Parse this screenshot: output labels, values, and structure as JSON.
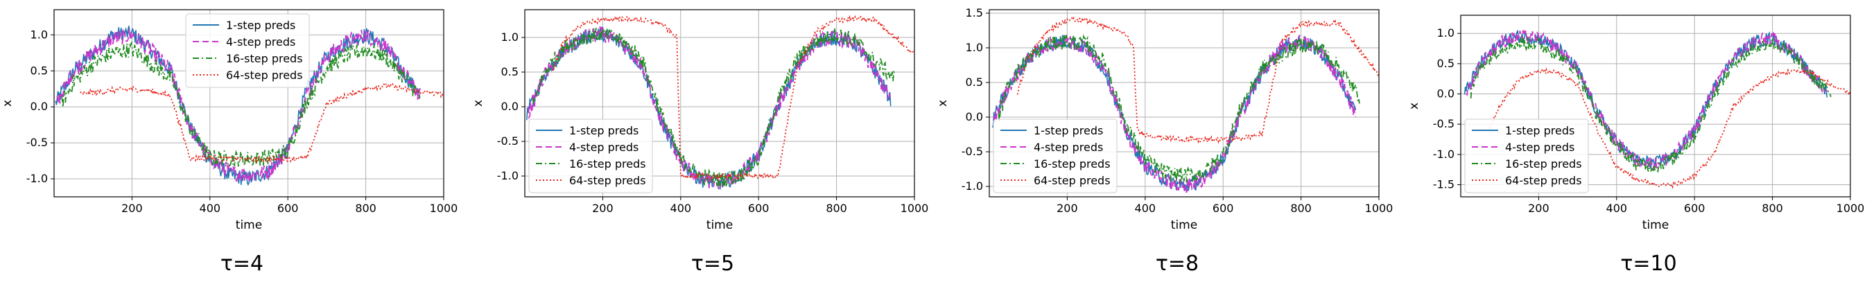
{
  "chart_data": [
    {
      "type": "line",
      "caption": "τ=4",
      "xlabel": "time",
      "ylabel": "x",
      "xlim": [
        0,
        1000
      ],
      "ylim": [
        -1.25,
        1.35
      ],
      "xticks": [
        200,
        400,
        600,
        800,
        1000
      ],
      "yticks": [
        -1.0,
        -0.5,
        0.0,
        0.5,
        1.0
      ],
      "grid": true,
      "legend_position": "top-center",
      "series": [
        {
          "name": "1-step preds",
          "color": "#1f77b4",
          "dash": "solid",
          "x_start": 4,
          "x_end": 940,
          "x": [
            4,
            50,
            100,
            150,
            200,
            250,
            300,
            350,
            400,
            450,
            500,
            550,
            600,
            650,
            700,
            750,
            800,
            850,
            900,
            940
          ],
          "values": [
            0.05,
            0.5,
            0.75,
            1.0,
            1.02,
            0.78,
            0.5,
            -0.3,
            -0.75,
            -0.95,
            -1.0,
            -0.9,
            -0.6,
            0.25,
            0.7,
            0.9,
            1.0,
            0.85,
            0.45,
            0.15
          ]
        },
        {
          "name": "4-step preds",
          "color": "#cc33cc",
          "dash": "dashed",
          "x_start": 7,
          "x_end": 940,
          "x": [
            7,
            50,
            100,
            150,
            200,
            250,
            300,
            350,
            400,
            450,
            500,
            550,
            600,
            650,
            700,
            750,
            800,
            850,
            900,
            940
          ],
          "values": [
            0.05,
            0.5,
            0.75,
            0.95,
            1.0,
            0.78,
            0.5,
            -0.3,
            -0.73,
            -0.9,
            -0.95,
            -0.9,
            -0.6,
            0.2,
            0.7,
            0.9,
            1.0,
            0.85,
            0.45,
            0.15
          ]
        },
        {
          "name": "16-step preds",
          "color": "#228b22",
          "dash": "dashdot",
          "x_start": 19,
          "x_end": 940,
          "x": [
            19,
            50,
            100,
            150,
            200,
            250,
            300,
            350,
            400,
            450,
            500,
            550,
            600,
            650,
            700,
            750,
            800,
            850,
            900,
            940
          ],
          "values": [
            0.05,
            0.35,
            0.6,
            0.75,
            0.8,
            0.6,
            0.4,
            -0.3,
            -0.7,
            -0.72,
            -0.72,
            -0.7,
            -0.62,
            0.1,
            0.55,
            0.72,
            0.8,
            0.7,
            0.4,
            0.15
          ]
        },
        {
          "name": "64-step preds",
          "color": "#e8231a",
          "dash": "dotted",
          "x_start": 67,
          "x_end": 1000,
          "x": [
            67,
            100,
            150,
            200,
            250,
            300,
            350,
            400,
            450,
            500,
            550,
            600,
            650,
            700,
            750,
            800,
            850,
            900,
            950,
            1000
          ],
          "values": [
            0.18,
            0.2,
            0.23,
            0.25,
            0.22,
            0.15,
            -0.72,
            -0.7,
            -0.72,
            -0.73,
            -0.73,
            -0.72,
            -0.7,
            0.05,
            0.15,
            0.25,
            0.3,
            0.25,
            0.2,
            0.18
          ]
        }
      ]
    },
    {
      "type": "line",
      "caption": "τ=5",
      "xlabel": "time",
      "ylabel": "x",
      "xlim": [
        0,
        1000
      ],
      "ylim": [
        -1.3,
        1.4
      ],
      "xticks": [
        200,
        400,
        600,
        800,
        1000
      ],
      "yticks": [
        -1.0,
        -0.5,
        0.0,
        0.5,
        1.0
      ],
      "grid": true,
      "legend_position": "bottom-left",
      "series": [
        {
          "name": "1-step preds",
          "color": "#1f77b4",
          "dash": "solid",
          "x_start": 5,
          "x_end": 940,
          "x": [
            5,
            50,
            100,
            150,
            200,
            250,
            300,
            350,
            400,
            450,
            500,
            550,
            600,
            650,
            700,
            750,
            800,
            850,
            900,
            940
          ],
          "values": [
            -0.1,
            0.45,
            0.8,
            1.0,
            1.05,
            0.9,
            0.6,
            -0.2,
            -0.8,
            -1.05,
            -1.1,
            -1.0,
            -0.7,
            0.0,
            0.6,
            0.95,
            1.0,
            0.9,
            0.5,
            0.1
          ]
        },
        {
          "name": "4-step preds",
          "color": "#cc33cc",
          "dash": "dashed",
          "x_start": 9,
          "x_end": 940,
          "x": [
            9,
            50,
            100,
            150,
            200,
            250,
            300,
            350,
            400,
            450,
            500,
            550,
            600,
            650,
            700,
            750,
            800,
            850,
            900,
            940
          ],
          "values": [
            -0.1,
            0.45,
            0.8,
            1.0,
            1.05,
            0.9,
            0.6,
            -0.2,
            -0.8,
            -1.05,
            -1.1,
            -1.0,
            -0.7,
            0.0,
            0.6,
            0.95,
            1.0,
            0.9,
            0.5,
            0.1
          ]
        },
        {
          "name": "16-step preds",
          "color": "#228b22",
          "dash": "dashdot",
          "x_start": 21,
          "x_end": 950,
          "x": [
            21,
            50,
            100,
            150,
            200,
            250,
            300,
            350,
            400,
            450,
            500,
            550,
            600,
            650,
            700,
            750,
            800,
            850,
            900,
            950
          ],
          "values": [
            0.0,
            0.5,
            0.85,
            1.0,
            1.05,
            0.95,
            0.7,
            -0.1,
            -0.75,
            -1.0,
            -1.05,
            -1.0,
            -0.75,
            0.1,
            0.7,
            0.95,
            1.05,
            0.95,
            0.65,
            0.4
          ]
        },
        {
          "name": "64-step preds",
          "color": "#e8231a",
          "dash": "dotted",
          "x_start": 70,
          "x_end": 1000,
          "x": [
            70,
            100,
            150,
            200,
            250,
            300,
            350,
            390,
            400,
            450,
            500,
            550,
            600,
            650,
            700,
            750,
            800,
            850,
            900,
            1000
          ],
          "values": [
            0.5,
            0.95,
            1.2,
            1.25,
            1.27,
            1.25,
            1.2,
            1.0,
            -1.0,
            -1.0,
            -1.0,
            -1.0,
            -1.0,
            -1.0,
            0.6,
            1.1,
            1.25,
            1.27,
            1.25,
            0.75
          ]
        }
      ]
    },
    {
      "type": "line",
      "caption": "τ=8",
      "xlabel": "time",
      "ylabel": "x",
      "xlim": [
        0,
        1000
      ],
      "ylim": [
        -1.15,
        1.55
      ],
      "xticks": [
        200,
        400,
        600,
        800,
        1000
      ],
      "yticks": [
        -1.0,
        -0.5,
        0.0,
        0.5,
        1.0,
        1.5
      ],
      "grid": true,
      "legend_position": "bottom-left",
      "series": [
        {
          "name": "1-step preds",
          "color": "#1f77b4",
          "dash": "solid",
          "x_start": 8,
          "x_end": 940,
          "x": [
            8,
            50,
            100,
            150,
            200,
            250,
            300,
            350,
            400,
            450,
            500,
            550,
            600,
            650,
            700,
            750,
            800,
            850,
            900,
            940
          ],
          "values": [
            -0.05,
            0.45,
            0.85,
            1.05,
            1.1,
            1.0,
            0.65,
            -0.2,
            -0.7,
            -0.9,
            -1.0,
            -0.9,
            -0.6,
            0.1,
            0.65,
            1.0,
            1.1,
            0.95,
            0.55,
            0.05
          ]
        },
        {
          "name": "4-step preds",
          "color": "#cc33cc",
          "dash": "dashed",
          "x_start": 12,
          "x_end": 940,
          "x": [
            12,
            50,
            100,
            150,
            200,
            250,
            300,
            350,
            400,
            450,
            500,
            550,
            600,
            650,
            700,
            750,
            800,
            850,
            900,
            940
          ],
          "values": [
            -0.05,
            0.45,
            0.85,
            1.05,
            1.1,
            1.0,
            0.65,
            -0.2,
            -0.7,
            -0.9,
            -1.0,
            -0.9,
            -0.6,
            0.1,
            0.65,
            1.0,
            1.1,
            0.95,
            0.55,
            0.05
          ]
        },
        {
          "name": "16-step preds",
          "color": "#228b22",
          "dash": "dashdot",
          "x_start": 24,
          "x_end": 950,
          "x": [
            24,
            50,
            100,
            150,
            200,
            250,
            300,
            350,
            400,
            450,
            500,
            550,
            600,
            650,
            700,
            750,
            800,
            850,
            900,
            950
          ],
          "values": [
            0.0,
            0.5,
            0.85,
            1.05,
            1.1,
            1.05,
            0.75,
            -0.1,
            -0.6,
            -0.8,
            -0.85,
            -0.8,
            -0.55,
            0.2,
            0.7,
            0.9,
            1.05,
            1.0,
            0.7,
            0.3
          ]
        },
        {
          "name": "64-step preds",
          "color": "#e8231a",
          "dash": "dotted",
          "x_start": 72,
          "x_end": 1000,
          "x": [
            72,
            100,
            150,
            200,
            250,
            300,
            350,
            370,
            380,
            400,
            450,
            500,
            550,
            600,
            650,
            700,
            750,
            800,
            900,
            1000
          ],
          "values": [
            0.35,
            0.85,
            1.25,
            1.4,
            1.4,
            1.3,
            1.2,
            1.0,
            -0.2,
            -0.25,
            -0.3,
            -0.32,
            -0.33,
            -0.32,
            -0.3,
            -0.25,
            1.1,
            1.35,
            1.35,
            0.6
          ]
        }
      ]
    },
    {
      "type": "line",
      "caption": "τ=10",
      "xlabel": "time",
      "ylabel": "x",
      "xlim": [
        0,
        1000
      ],
      "ylim": [
        -1.7,
        1.3
      ],
      "xticks": [
        200,
        400,
        600,
        800,
        1000
      ],
      "yticks": [
        -1.5,
        -1.0,
        -0.5,
        0.0,
        0.5,
        1.0
      ],
      "grid": true,
      "legend_position": "bottom-left",
      "series": [
        {
          "name": "1-step preds",
          "color": "#1f77b4",
          "dash": "solid",
          "x_start": 10,
          "x_end": 940,
          "x": [
            10,
            50,
            100,
            150,
            200,
            250,
            300,
            350,
            400,
            450,
            500,
            550,
            600,
            650,
            700,
            750,
            800,
            850,
            900,
            940
          ],
          "values": [
            0.0,
            0.5,
            0.85,
            0.95,
            0.92,
            0.75,
            0.4,
            -0.3,
            -0.8,
            -1.1,
            -1.15,
            -1.0,
            -0.6,
            0.1,
            0.6,
            0.85,
            0.92,
            0.7,
            0.3,
            0.05
          ]
        },
        {
          "name": "4-step preds",
          "color": "#cc33cc",
          "dash": "dashed",
          "x_start": 14,
          "x_end": 940,
          "x": [
            14,
            50,
            100,
            150,
            200,
            250,
            300,
            350,
            400,
            450,
            500,
            550,
            600,
            650,
            700,
            750,
            800,
            850,
            900,
            940
          ],
          "values": [
            0.0,
            0.5,
            0.85,
            0.95,
            0.92,
            0.75,
            0.4,
            -0.3,
            -0.8,
            -1.1,
            -1.15,
            -1.0,
            -0.6,
            0.1,
            0.6,
            0.85,
            0.92,
            0.7,
            0.3,
            0.05
          ]
        },
        {
          "name": "16-step preds",
          "color": "#228b22",
          "dash": "dashdot",
          "x_start": 26,
          "x_end": 950,
          "x": [
            26,
            50,
            100,
            150,
            200,
            250,
            300,
            350,
            400,
            450,
            500,
            550,
            600,
            650,
            700,
            750,
            800,
            850,
            900,
            950
          ],
          "values": [
            0.0,
            0.45,
            0.75,
            0.85,
            0.82,
            0.65,
            0.35,
            -0.35,
            -0.85,
            -1.15,
            -1.2,
            -1.05,
            -0.7,
            0.0,
            0.5,
            0.75,
            0.85,
            0.65,
            0.3,
            0.0
          ]
        },
        {
          "name": "64-step preds",
          "color": "#e8231a",
          "dash": "dotted",
          "x_start": 74,
          "x_end": 1000,
          "x": [
            74,
            100,
            150,
            200,
            250,
            300,
            350,
            400,
            450,
            500,
            550,
            600,
            650,
            700,
            750,
            800,
            850,
            900,
            950,
            1000
          ],
          "values": [
            -0.55,
            -0.2,
            0.25,
            0.38,
            0.35,
            0.15,
            -0.6,
            -1.2,
            -1.4,
            -1.5,
            -1.5,
            -1.35,
            -1.0,
            -0.2,
            0.1,
            0.3,
            0.38,
            0.35,
            0.15,
            0.0
          ]
        }
      ]
    }
  ]
}
